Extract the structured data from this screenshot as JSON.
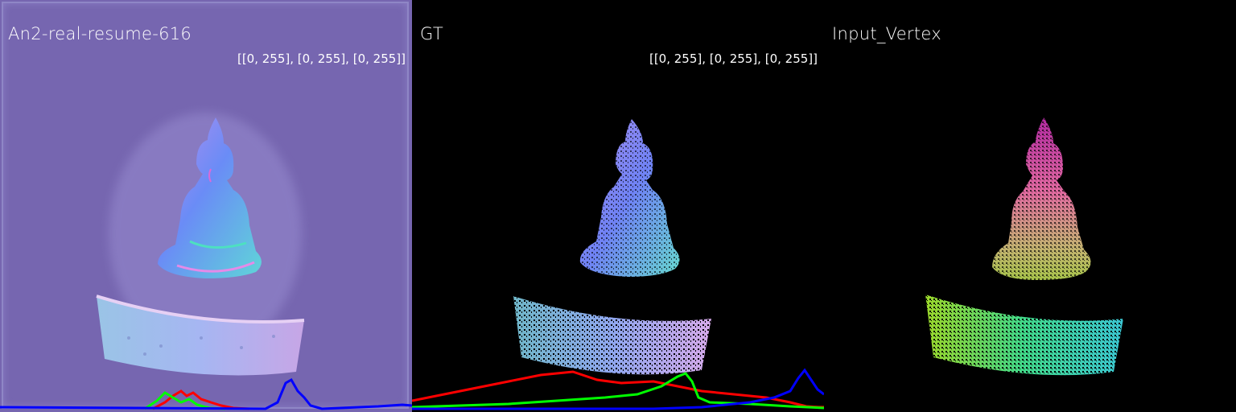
{
  "panels": [
    {
      "title": "An2-real-resume-616",
      "range": "[[0, 255], [0, 255], [0, 255]]"
    },
    {
      "title": "GT",
      "range": "[[0, 255], [0, 255], [0, 255]]"
    },
    {
      "title": "Input_Vertex",
      "range": ""
    }
  ],
  "colors": {
    "panel1_bg": "#7666b0",
    "hist_red": "#ff0000",
    "hist_green": "#00ff00",
    "hist_blue": "#0000ff"
  }
}
